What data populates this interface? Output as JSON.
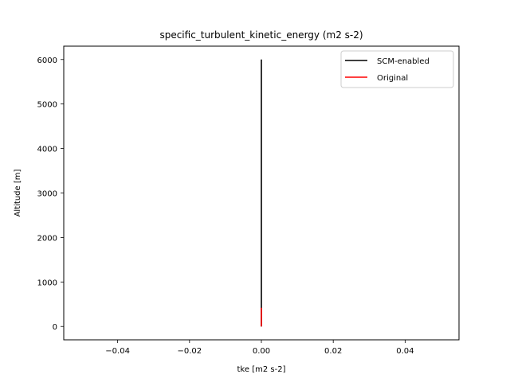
{
  "chart_data": {
    "type": "line",
    "title": "specific_turbulent_kinetic_energy (m2 s-2)",
    "xlabel": "tke [m2 s-2]",
    "ylabel": "Altitude [m]",
    "xlim": [
      -0.055,
      0.055
    ],
    "ylim": [
      -300,
      6300
    ],
    "xticks": [
      -0.04,
      -0.02,
      0.0,
      0.02,
      0.04
    ],
    "xtick_labels": [
      "−0.04",
      "−0.02",
      "0.00",
      "0.02",
      "0.04"
    ],
    "yticks": [
      0,
      1000,
      2000,
      3000,
      4000,
      5000,
      6000
    ],
    "ytick_labels": [
      "0",
      "1000",
      "2000",
      "3000",
      "4000",
      "5000",
      "6000"
    ],
    "grid": false,
    "legend_position": "top-right",
    "series": [
      {
        "name": "SCM-enabled",
        "color": "#000000",
        "x": [
          0,
          0
        ],
        "y": [
          0,
          6000
        ]
      },
      {
        "name": "Original",
        "color": "#ff0000",
        "x": [
          0,
          0
        ],
        "y": [
          0,
          420
        ]
      }
    ]
  }
}
